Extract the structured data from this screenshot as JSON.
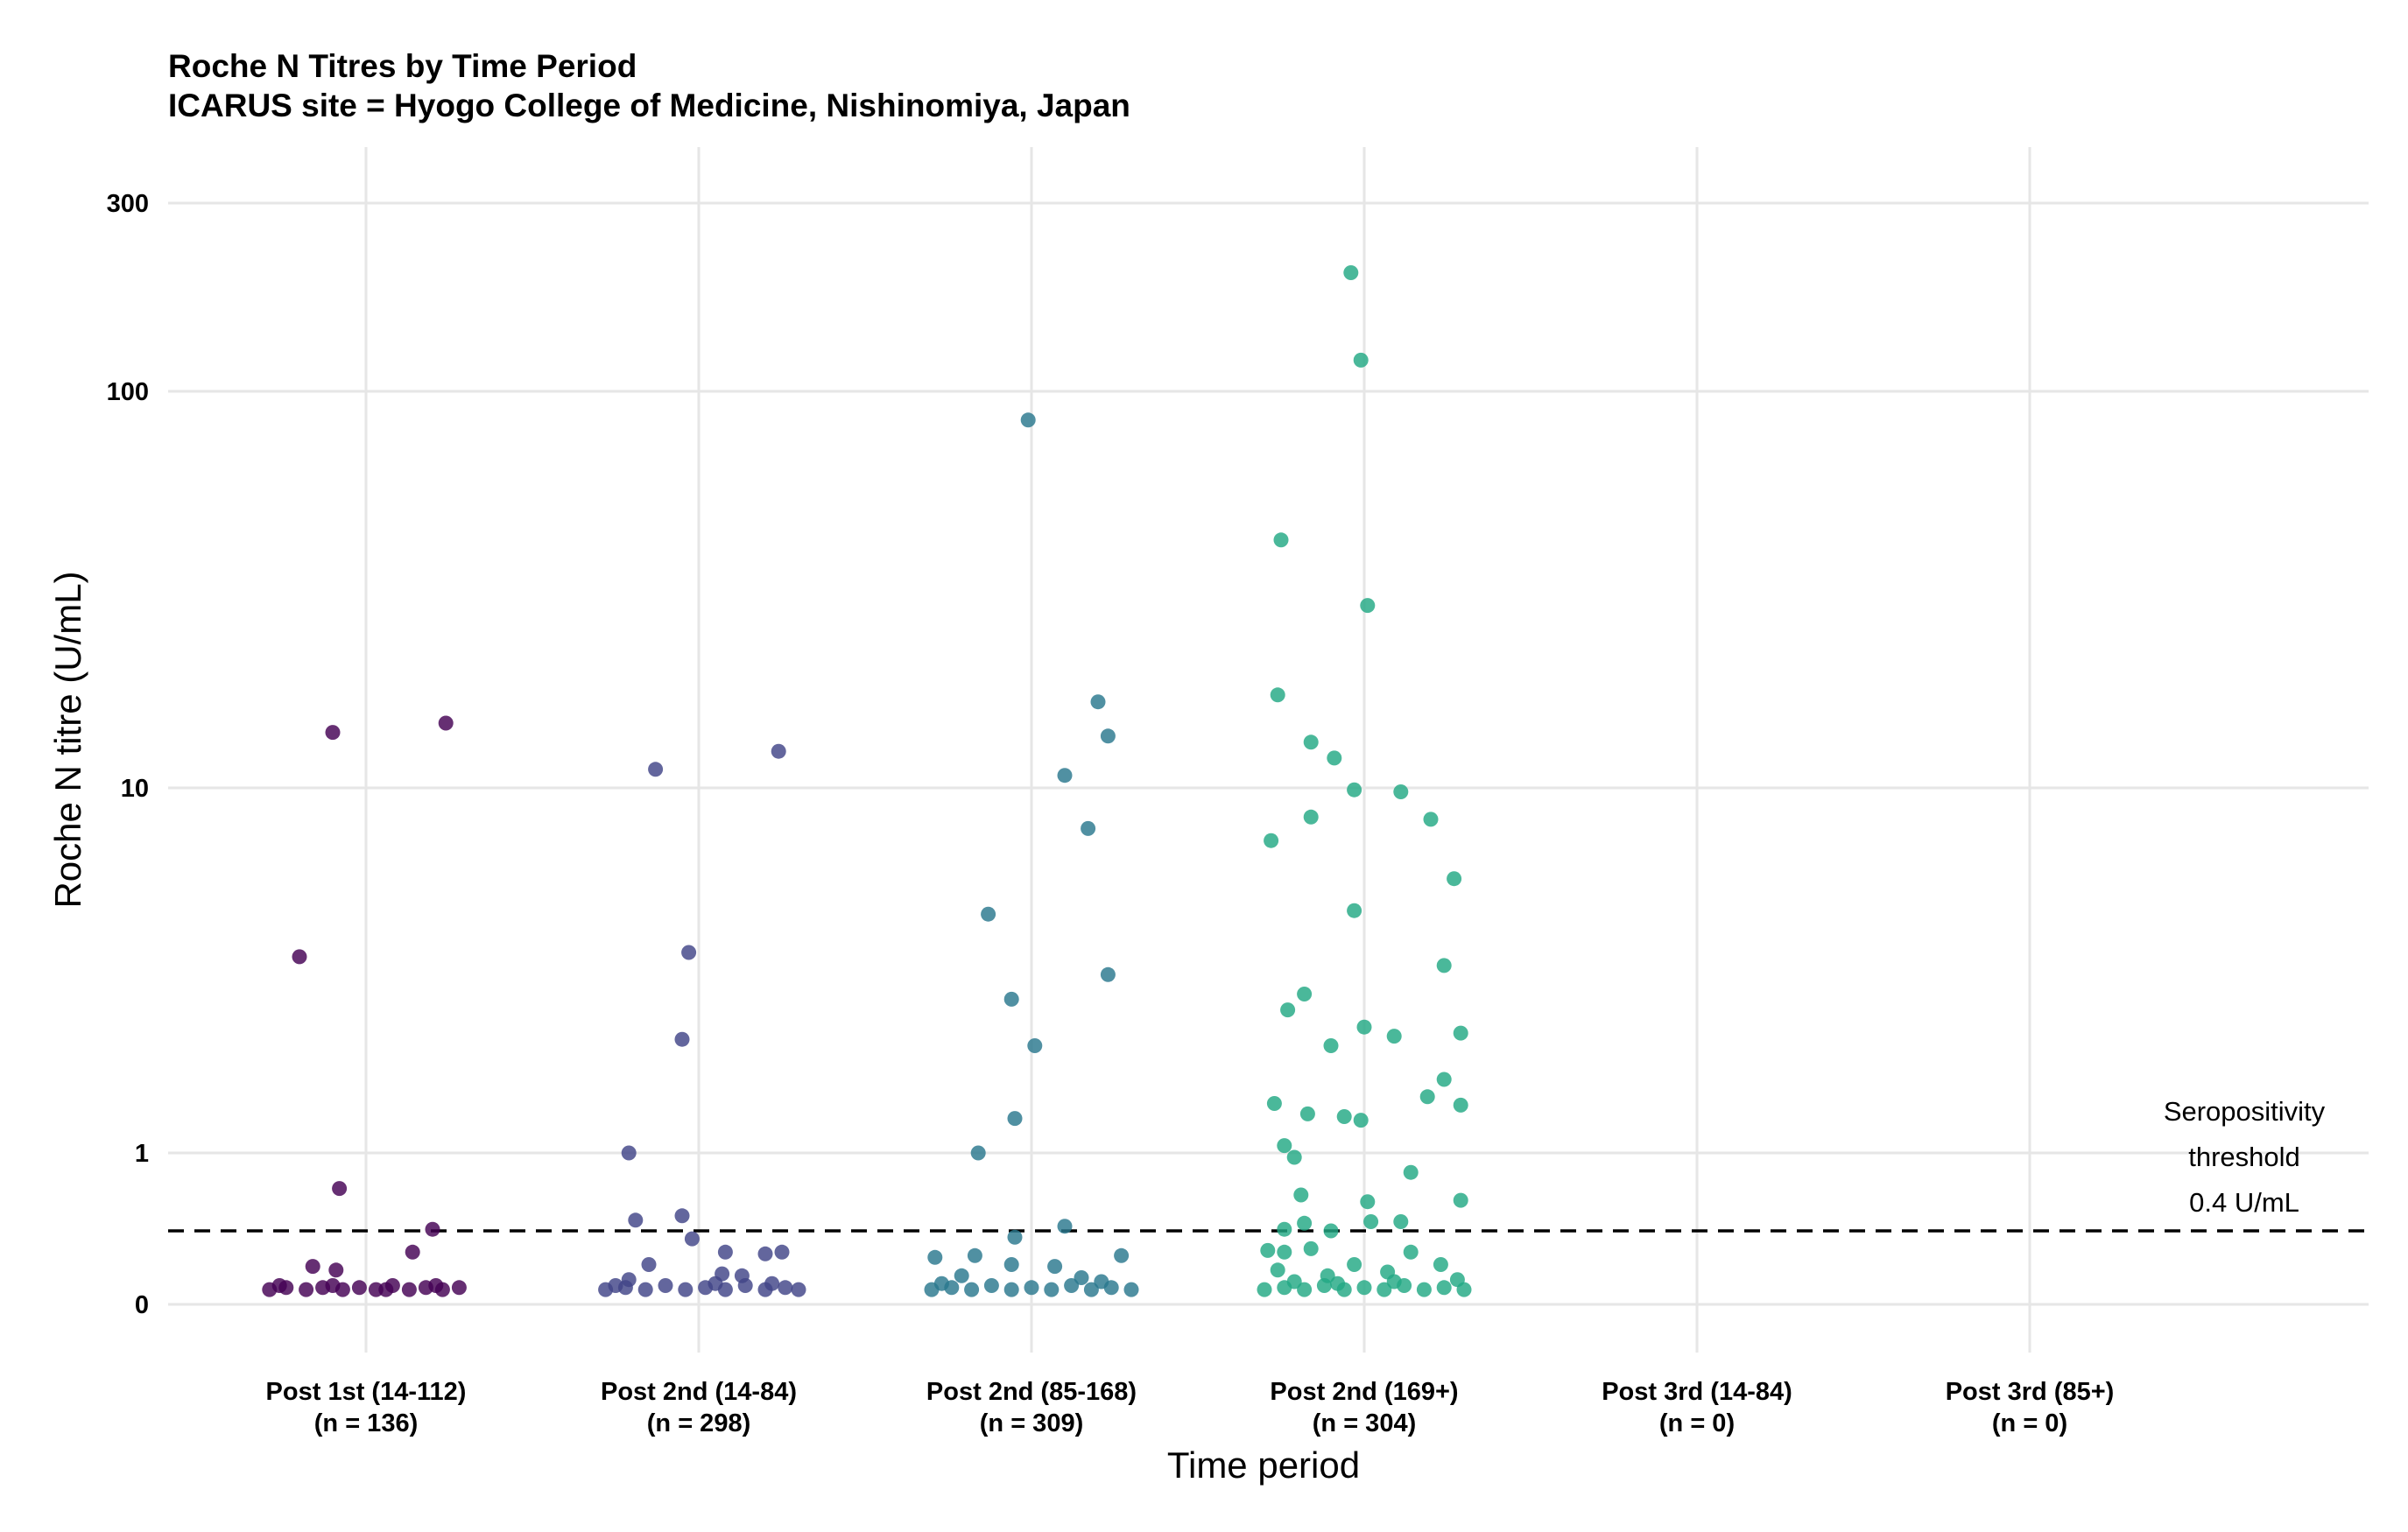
{
  "chart_data": {
    "type": "scatter",
    "title": "Roche N Titres by Time Period",
    "subtitle": "ICARUS site = Hyogo College of Medicine, Nishinomiya, Japan",
    "xlabel": "Time period",
    "ylabel": "Roche N titre (U/mL)",
    "y_scale": "pseudo-log",
    "y_ticks": [
      "0",
      "1",
      "10",
      "100",
      "300"
    ],
    "grid": true,
    "categories": [
      "Post 1st (14-112)",
      "Post 2nd (14-84)",
      "Post 2nd (85-168)",
      "Post 2nd (169+)",
      "Post 3rd (14-84)",
      "Post 3rd (85+)"
    ],
    "category_counts": [
      "(n = 136)",
      "(n = 298)",
      "(n = 309)",
      "(n = 304)",
      "(n = 0)",
      "(n = 0)"
    ],
    "colors": [
      "#440154",
      "#414487",
      "#2a788e",
      "#22a884",
      "#7ad151",
      "#fde725"
    ],
    "threshold": {
      "value": 0.4,
      "label_lines": [
        "Seropositivity",
        "threshold",
        "0.4 U/mL"
      ]
    },
    "series": [
      {
        "category": "Post 1st (14-112)",
        "n": 136,
        "points": [
          {
            "x": -0.2,
            "y": 4.0
          },
          {
            "x": -0.1,
            "y": 14.0
          },
          {
            "x": 0.24,
            "y": 14.8
          },
          {
            "x": -0.08,
            "y": 0.7
          },
          {
            "x": 0.2,
            "y": 0.41
          },
          {
            "x": 0.14,
            "y": 0.27
          },
          {
            "x": -0.16,
            "y": 0.19
          },
          {
            "x": -0.09,
            "y": 0.17
          },
          {
            "x": -0.29,
            "y": 0.07
          },
          {
            "x": -0.24,
            "y": 0.08
          },
          {
            "x": -0.18,
            "y": 0.07
          },
          {
            "x": -0.13,
            "y": 0.08
          },
          {
            "x": -0.07,
            "y": 0.07
          },
          {
            "x": -0.02,
            "y": 0.08
          },
          {
            "x": 0.03,
            "y": 0.07
          },
          {
            "x": 0.08,
            "y": 0.09
          },
          {
            "x": 0.13,
            "y": 0.07
          },
          {
            "x": 0.18,
            "y": 0.08
          },
          {
            "x": 0.23,
            "y": 0.07
          },
          {
            "x": 0.28,
            "y": 0.08
          },
          {
            "x": -0.26,
            "y": 0.09
          },
          {
            "x": -0.1,
            "y": 0.09
          },
          {
            "x": 0.06,
            "y": 0.07
          },
          {
            "x": 0.21,
            "y": 0.09
          }
        ]
      },
      {
        "category": "Post 2nd (14-84)",
        "n": 298,
        "points": [
          {
            "x": -0.13,
            "y": 11.2
          },
          {
            "x": 0.24,
            "y": 12.5
          },
          {
            "x": -0.03,
            "y": 4.1
          },
          {
            "x": -0.05,
            "y": 2.4
          },
          {
            "x": -0.21,
            "y": 1.0
          },
          {
            "x": -0.19,
            "y": 0.47
          },
          {
            "x": -0.05,
            "y": 0.5
          },
          {
            "x": -0.02,
            "y": 0.35
          },
          {
            "x": 0.08,
            "y": 0.27
          },
          {
            "x": 0.2,
            "y": 0.26
          },
          {
            "x": 0.25,
            "y": 0.27
          },
          {
            "x": -0.15,
            "y": 0.2
          },
          {
            "x": 0.07,
            "y": 0.15
          },
          {
            "x": 0.13,
            "y": 0.14
          },
          {
            "x": -0.21,
            "y": 0.12
          },
          {
            "x": -0.28,
            "y": 0.07
          },
          {
            "x": -0.22,
            "y": 0.08
          },
          {
            "x": -0.16,
            "y": 0.07
          },
          {
            "x": -0.1,
            "y": 0.09
          },
          {
            "x": -0.04,
            "y": 0.07
          },
          {
            "x": 0.02,
            "y": 0.08
          },
          {
            "x": 0.08,
            "y": 0.07
          },
          {
            "x": 0.14,
            "y": 0.09
          },
          {
            "x": 0.2,
            "y": 0.07
          },
          {
            "x": 0.26,
            "y": 0.08
          },
          {
            "x": 0.3,
            "y": 0.07
          },
          {
            "x": -0.25,
            "y": 0.09
          },
          {
            "x": 0.05,
            "y": 0.1
          },
          {
            "x": 0.22,
            "y": 0.1
          }
        ]
      },
      {
        "category": "Post 2nd (85-168)",
        "n": 309,
        "points": [
          {
            "x": -0.01,
            "y": 85.0
          },
          {
            "x": 0.2,
            "y": 16.8
          },
          {
            "x": 0.23,
            "y": 13.7
          },
          {
            "x": 0.1,
            "y": 10.8
          },
          {
            "x": 0.17,
            "y": 8.1
          },
          {
            "x": -0.13,
            "y": 5.1
          },
          {
            "x": 0.23,
            "y": 3.6
          },
          {
            "x": -0.06,
            "y": 3.1
          },
          {
            "x": 0.01,
            "y": 2.3
          },
          {
            "x": -0.05,
            "y": 1.35
          },
          {
            "x": -0.16,
            "y": 1.0
          },
          {
            "x": 0.1,
            "y": 0.43
          },
          {
            "x": -0.05,
            "y": 0.36
          },
          {
            "x": -0.29,
            "y": 0.24
          },
          {
            "x": -0.17,
            "y": 0.25
          },
          {
            "x": 0.27,
            "y": 0.25
          },
          {
            "x": -0.06,
            "y": 0.2
          },
          {
            "x": 0.07,
            "y": 0.19
          },
          {
            "x": -0.3,
            "y": 0.07
          },
          {
            "x": -0.24,
            "y": 0.08
          },
          {
            "x": -0.18,
            "y": 0.07
          },
          {
            "x": -0.12,
            "y": 0.09
          },
          {
            "x": -0.06,
            "y": 0.07
          },
          {
            "x": 0.0,
            "y": 0.08
          },
          {
            "x": 0.06,
            "y": 0.07
          },
          {
            "x": 0.12,
            "y": 0.09
          },
          {
            "x": 0.18,
            "y": 0.07
          },
          {
            "x": 0.24,
            "y": 0.08
          },
          {
            "x": 0.3,
            "y": 0.07
          },
          {
            "x": -0.21,
            "y": 0.14
          },
          {
            "x": 0.15,
            "y": 0.13
          },
          {
            "x": -0.27,
            "y": 0.1
          },
          {
            "x": 0.21,
            "y": 0.11
          }
        ]
      },
      {
        "category": "Post 2nd (169+)",
        "n": 304,
        "points": [
          {
            "x": -0.04,
            "y": 200.0
          },
          {
            "x": -0.01,
            "y": 120.0
          },
          {
            "x": -0.25,
            "y": 43.0
          },
          {
            "x": 0.01,
            "y": 29.5
          },
          {
            "x": -0.26,
            "y": 17.5
          },
          {
            "x": -0.16,
            "y": 13.2
          },
          {
            "x": -0.09,
            "y": 12.0
          },
          {
            "x": -0.03,
            "y": 9.9
          },
          {
            "x": 0.11,
            "y": 9.8
          },
          {
            "x": 0.2,
            "y": 8.5
          },
          {
            "x": -0.16,
            "y": 8.6
          },
          {
            "x": -0.28,
            "y": 7.6
          },
          {
            "x": 0.27,
            "y": 6.2
          },
          {
            "x": -0.03,
            "y": 5.2
          },
          {
            "x": 0.24,
            "y": 3.8
          },
          {
            "x": -0.18,
            "y": 3.2
          },
          {
            "x": -0.23,
            "y": 2.9
          },
          {
            "x": 0.0,
            "y": 2.6
          },
          {
            "x": 0.09,
            "y": 2.45
          },
          {
            "x": 0.29,
            "y": 2.5
          },
          {
            "x": -0.1,
            "y": 2.3
          },
          {
            "x": 0.24,
            "y": 1.82
          },
          {
            "x": 0.19,
            "y": 1.6
          },
          {
            "x": 0.29,
            "y": 1.5
          },
          {
            "x": -0.27,
            "y": 1.52
          },
          {
            "x": -0.17,
            "y": 1.4
          },
          {
            "x": -0.06,
            "y": 1.37
          },
          {
            "x": -0.01,
            "y": 1.33
          },
          {
            "x": -0.24,
            "y": 1.07
          },
          {
            "x": -0.21,
            "y": 0.96
          },
          {
            "x": 0.14,
            "y": 0.83
          },
          {
            "x": -0.19,
            "y": 0.65
          },
          {
            "x": 0.01,
            "y": 0.6
          },
          {
            "x": 0.29,
            "y": 0.61
          },
          {
            "x": -0.18,
            "y": 0.45
          },
          {
            "x": 0.11,
            "y": 0.46
          },
          {
            "x": 0.02,
            "y": 0.46
          },
          {
            "x": -0.24,
            "y": 0.41
          },
          {
            "x": -0.1,
            "y": 0.4
          },
          {
            "x": -0.29,
            "y": 0.28
          },
          {
            "x": -0.24,
            "y": 0.27
          },
          {
            "x": -0.16,
            "y": 0.29
          },
          {
            "x": 0.14,
            "y": 0.27
          },
          {
            "x": -0.03,
            "y": 0.2
          },
          {
            "x": 0.23,
            "y": 0.2
          },
          {
            "x": -0.26,
            "y": 0.17
          },
          {
            "x": 0.07,
            "y": 0.16
          },
          {
            "x": -0.11,
            "y": 0.14
          },
          {
            "x": -0.3,
            "y": 0.07
          },
          {
            "x": -0.24,
            "y": 0.08
          },
          {
            "x": -0.18,
            "y": 0.07
          },
          {
            "x": -0.12,
            "y": 0.09
          },
          {
            "x": -0.06,
            "y": 0.07
          },
          {
            "x": 0.0,
            "y": 0.08
          },
          {
            "x": 0.06,
            "y": 0.07
          },
          {
            "x": 0.12,
            "y": 0.09
          },
          {
            "x": 0.18,
            "y": 0.07
          },
          {
            "x": 0.24,
            "y": 0.08
          },
          {
            "x": 0.3,
            "y": 0.07
          },
          {
            "x": -0.21,
            "y": 0.11
          },
          {
            "x": 0.09,
            "y": 0.11
          },
          {
            "x": 0.28,
            "y": 0.12
          },
          {
            "x": -0.08,
            "y": 0.1
          }
        ]
      },
      {
        "category": "Post 3rd (14-84)",
        "n": 0,
        "points": []
      },
      {
        "category": "Post 3rd (85+)",
        "n": 0,
        "points": []
      }
    ]
  }
}
